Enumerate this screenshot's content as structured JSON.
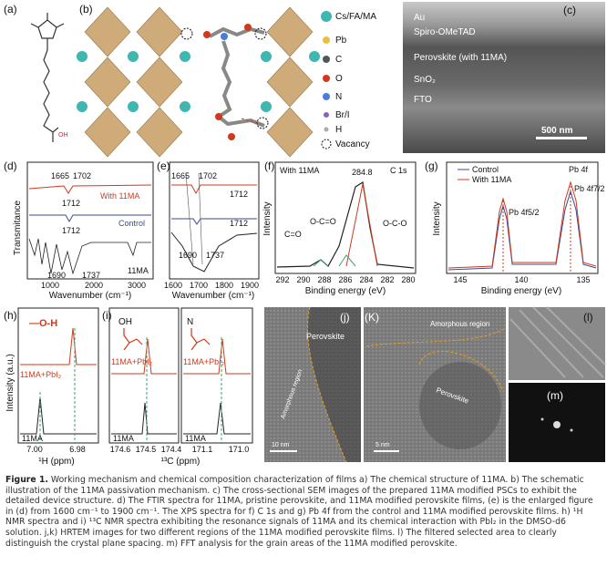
{
  "panels": {
    "a": {
      "label": "(a)"
    },
    "b": {
      "label": "(b)",
      "legend": [
        "Cs/FA/MA",
        "Pb",
        "C",
        "O",
        "N",
        "Br/I",
        "H",
        "Vacancy"
      ]
    },
    "c": {
      "label": "(c)",
      "layers": [
        "Au",
        "Spiro-OMeTAD",
        "Perovskite (with 11MA)",
        "SnO₂",
        "FTO"
      ],
      "scale": "500 nm"
    },
    "d": {
      "label": "(d)",
      "ylabel": "Transmitance",
      "xlabel": "Wavenumber (cm⁻¹)",
      "xticks": [
        "1000",
        "2000",
        "3000"
      ],
      "annotations": [
        "1665",
        "1702",
        "1712",
        "1712",
        "1690",
        "1737"
      ],
      "series": [
        "With 11MA",
        "Control",
        "11MA"
      ]
    },
    "e": {
      "label": "(e)",
      "xlabel": "Wavenumber (cm⁻¹)",
      "xticks": [
        "1600",
        "1700",
        "1800",
        "1900"
      ],
      "annotations": [
        "1665",
        "1702",
        "1712",
        "1712",
        "1690",
        "1737"
      ]
    },
    "f": {
      "label": "(f)",
      "title": "With 11MA",
      "element": "C 1s",
      "peak": "284.8",
      "annotations": [
        "C=O",
        "O-C=O",
        "O-C-O"
      ],
      "ylabel": "Intensity",
      "xlabel": "Binding energy (eV)",
      "xticks": [
        "292",
        "290",
        "288",
        "286",
        "284",
        "282",
        "280"
      ]
    },
    "g": {
      "label": "(g)",
      "legend": [
        "Control",
        "With 11MA"
      ],
      "element": "Pb 4f",
      "peaks": [
        "Pb 4f5/2",
        "Pb 4f7/2"
      ],
      "ylabel": "Intensity",
      "xlabel": "Binding energy (eV)",
      "xticks": [
        "145",
        "140",
        "135"
      ]
    },
    "h": {
      "label": "(h)",
      "group": "—O-H",
      "series": [
        "11MA+PbI₂",
        "11MA"
      ],
      "ylabel": "Intensity (a.u.)",
      "xlabel": "¹H (ppm)",
      "xticks": [
        "7.00",
        "6.98"
      ]
    },
    "i": {
      "label": "(i)",
      "groups": [
        "OH",
        "N"
      ],
      "series": [
        "11MA+PbI₂",
        "11MA"
      ],
      "xlabel": "¹³C (ppm)",
      "xticks_left": [
        "174.6",
        "174.5",
        "174.4"
      ],
      "xticks_right": [
        "171.1",
        "171.0"
      ]
    },
    "j": {
      "label": "(j)",
      "texts": [
        "Perovskite",
        "Amorphous region"
      ],
      "scale": "10 nm"
    },
    "k": {
      "label": "(K)",
      "texts": [
        "Amorphous region",
        "Perovskite"
      ],
      "scale": "5 nm"
    },
    "l": {
      "label": "(l)"
    },
    "m": {
      "label": "(m)"
    }
  },
  "caption": {
    "label": "Figure 1.",
    "text": "Working mechanism and chemical composition characterization of films a) The chemical structure of 11MA. b) The schematic illustration of the 11MA passivation mechanism. c) The cross-sectional SEM images of the prepared 11MA modified PSCs to exhibit the detailed device structure. d) The FTIR spectra for 11MA, pristine perovskite, and 11MA modified perovskite films, (e) is the enlarged figure in (d) from 1600 cm⁻¹ to 1900 cm⁻¹. The XPS spectra for f) C 1s and g) Pb 4f from the control and 11MA modified perovskite films. h) ¹H NMR spectra and i) ¹³C NMR spectra exhibiting the resonance signals of 11MA and its chemical interaction with PbI₂ in the DMSO-d6 solution. j,k) HRTEM images for two different regions of the 11MA modified perovskite films. l) The filtered selected area to clearly distinguish the crystal plane spacing. m) FFT analysis for the grain areas of the 11MA modified perovskite."
  }
}
